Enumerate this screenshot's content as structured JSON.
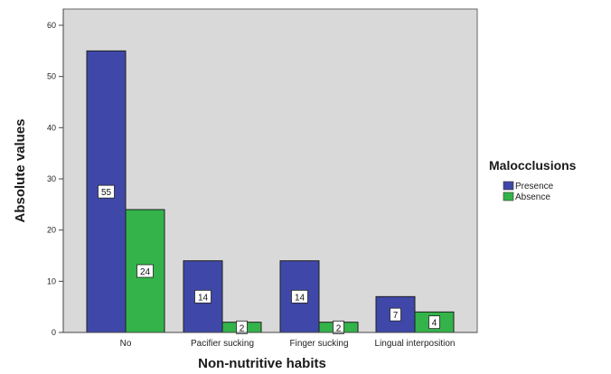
{
  "chart_data": {
    "type": "bar",
    "categories": [
      "No",
      "Pacifier sucking",
      "Finger sucking",
      "Lingual interposition"
    ],
    "series": [
      {
        "name": "Presence",
        "values": [
          55,
          14,
          14,
          7
        ],
        "color": "#3f48a8"
      },
      {
        "name": "Absence",
        "values": [
          24,
          2,
          2,
          4
        ],
        "color": "#33b34a"
      }
    ],
    "xlabel": "Non-nutritive habits",
    "ylabel": "Absolute values",
    "ylim": [
      0,
      60
    ],
    "yticks": [
      0,
      10,
      20,
      30,
      40,
      50,
      60
    ],
    "legend": {
      "title": "Malocclusions",
      "placement": "right"
    },
    "grid": false,
    "plot_background": "#d9d9d9"
  }
}
